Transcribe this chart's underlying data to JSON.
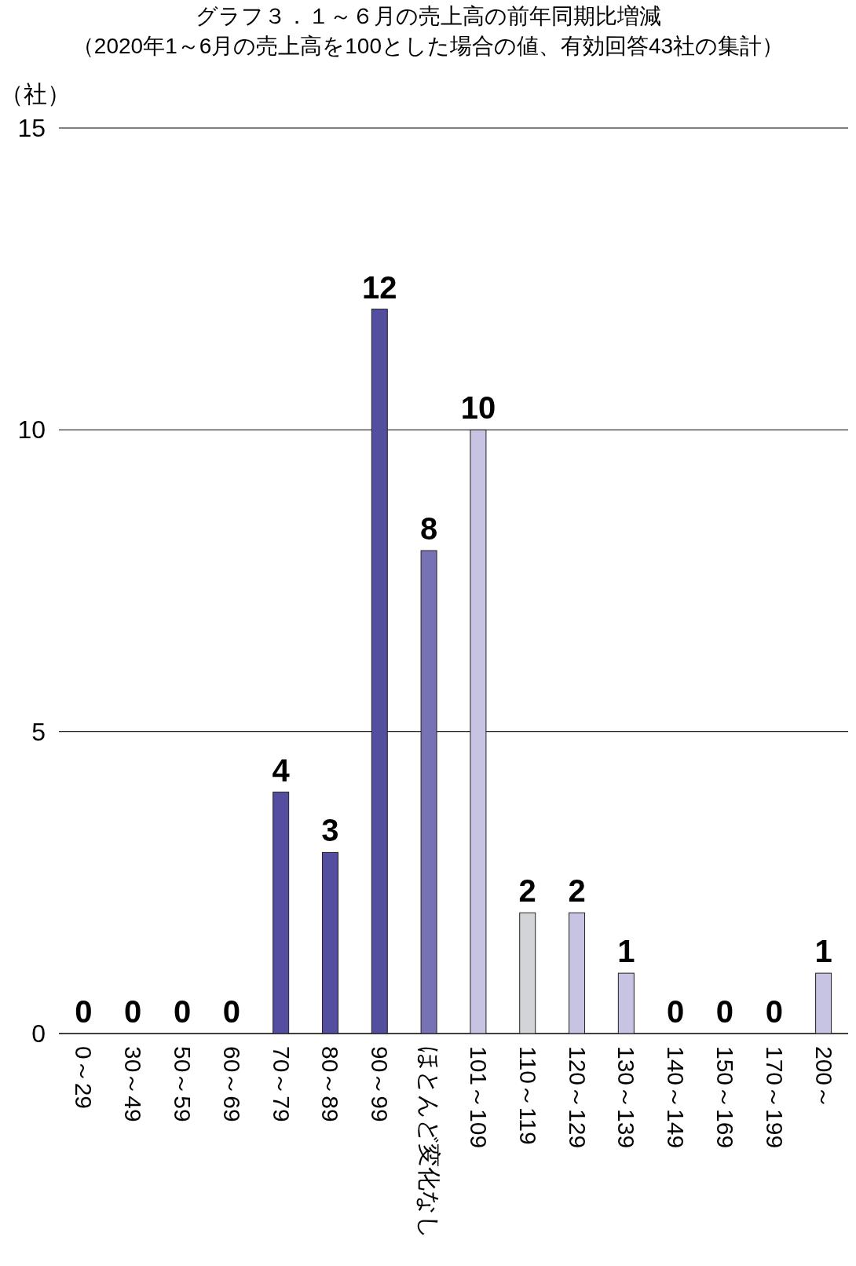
{
  "chart_data": {
    "type": "bar",
    "title": "グラフ３．１～６月の売上高の前年同期比増減",
    "subtitle": "（2020年1～6月の売上高を100とした場合の値、有効回答43社の集計）",
    "ylabel": "（社）",
    "categories": [
      "0～29",
      "30～49",
      "50～59",
      "60～69",
      "70～79",
      "80～89",
      "90～99",
      "ほとんど変化なし",
      "101～109",
      "110～119",
      "120～129",
      "130～139",
      "140～149",
      "150～169",
      "170～199",
      "200～"
    ],
    "values": [
      0,
      0,
      0,
      0,
      4,
      3,
      12,
      8,
      10,
      2,
      2,
      1,
      0,
      0,
      0,
      1
    ],
    "colors": [
      "#544ea0",
      "#544ea0",
      "#544ea0",
      "#544ea0",
      "#544ea0",
      "#544ea0",
      "#544ea0",
      "#7672b4",
      "#c6c3e3",
      "#d3d4d8",
      "#c6c3e3",
      "#c6c3e3",
      "#c6c3e3",
      "#c6c3e3",
      "#c6c3e3",
      "#c6c3e3"
    ],
    "ylim": [
      0,
      15
    ],
    "yticks": [
      0,
      5,
      10,
      15
    ],
    "grid": "y",
    "data_labels": true
  }
}
